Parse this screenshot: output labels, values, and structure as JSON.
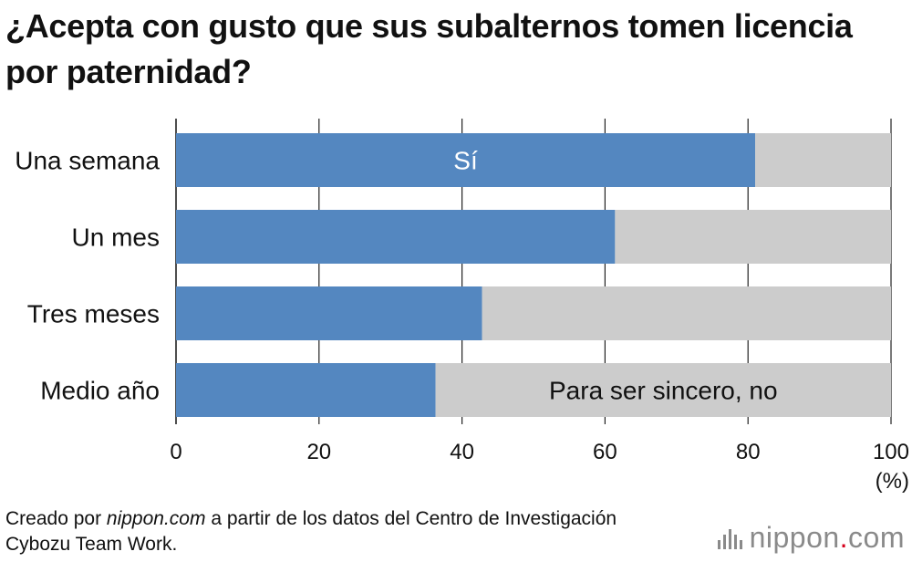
{
  "title": "¿Acepta con gusto que sus subalternos tomen licencia por paternidad?",
  "chart_data": {
    "type": "bar",
    "orientation": "horizontal",
    "stacked": true,
    "categories": [
      "Una semana",
      "Un mes",
      "Tres meses",
      "Medio año"
    ],
    "series": [
      {
        "name": "Sí",
        "color": "#5487c0",
        "values": [
          81,
          61.4,
          42.8,
          36.3
        ]
      },
      {
        "name": "Para ser sincero, no",
        "color": "#cccccc",
        "values": [
          19,
          38.6,
          57.2,
          63.7
        ]
      }
    ],
    "xlim": [
      0,
      100
    ],
    "xticks": [
      0,
      20,
      40,
      60,
      80,
      100
    ],
    "xunit": "(%)",
    "grid": true
  },
  "footer": {
    "prefix": "Creado por ",
    "source_site": "nippon.com",
    "suffix": " a partir de los datos del Centro de Investigación Cybozu Team Work."
  },
  "brand": {
    "name": "nippon",
    "dot": ".",
    "tld": "com",
    "accent_color": "#d6001c"
  }
}
